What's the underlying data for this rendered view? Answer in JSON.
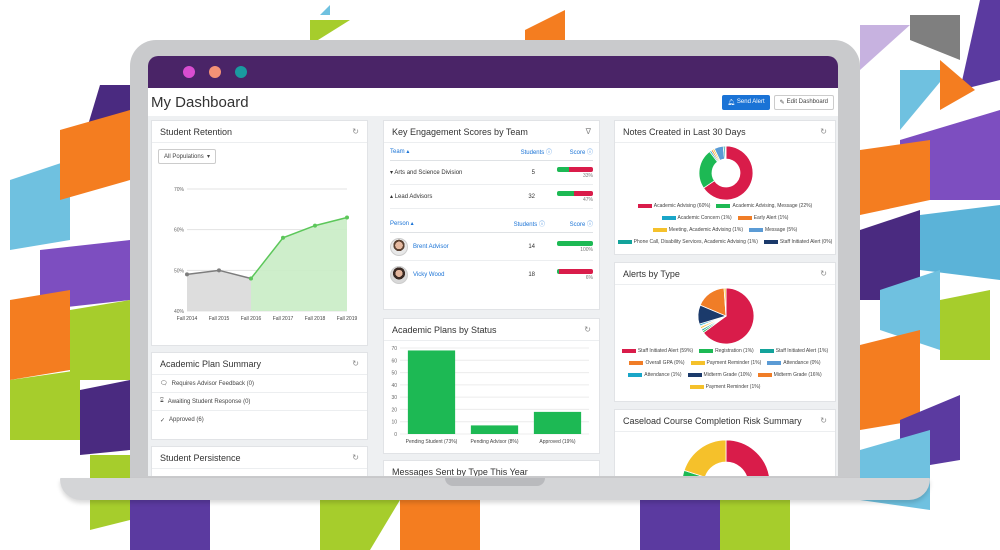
{
  "window": {
    "title_dot_colors": [
      "#d94dd0",
      "#f49276",
      "#1a9aa0"
    ]
  },
  "header": {
    "page_title": "My Dashboard",
    "send_alert_label": "Send Alert",
    "edit_dashboard_label": "Edit Dashboard",
    "send_icon": "bell-icon",
    "edit_icon": "pencil-icon"
  },
  "student_retention": {
    "title": "Student Retention",
    "population_select": "All Populations",
    "chart_data": {
      "type": "line",
      "x": [
        "Fall 2014",
        "Fall 2015",
        "Fall 2016",
        "Fall 2017",
        "Fall 2018",
        "Fall 2019"
      ],
      "series": [
        {
          "values": [
            49,
            50,
            48,
            null,
            null,
            null
          ],
          "color": "#7d7d7d"
        },
        {
          "values": [
            null,
            null,
            48,
            58,
            61,
            63
          ],
          "color": "#5cc75a"
        }
      ],
      "yticks": [
        "70%",
        "60%",
        "50%",
        "40%"
      ],
      "ylim": [
        40,
        70
      ]
    }
  },
  "academic_plan_summary": {
    "title": "Academic Plan Summary",
    "items": [
      {
        "label": "Requires Advisor Feedback (0)",
        "icon": "chat-icon"
      },
      {
        "label": "Awaiting Student Response (0)",
        "icon": "hourglass-icon"
      },
      {
        "label": "Approved (6)",
        "icon": "check-icon"
      }
    ]
  },
  "student_persistence": {
    "title": "Student Persistence"
  },
  "engagement": {
    "title": "Key Engagement Scores by Team",
    "team_headers": {
      "team": "Team",
      "students": "Students",
      "score": "Score"
    },
    "teams": [
      {
        "name": "Arts and Science Division",
        "students": "5",
        "score": 0.33,
        "pct": "33%",
        "expanded": false
      },
      {
        "name": "Lead Advisors",
        "students": "32",
        "score": 0.47,
        "pct": "47%",
        "expanded": true
      }
    ],
    "person_headers": {
      "person": "Person",
      "students": "Students",
      "score": "Score"
    },
    "people": [
      {
        "name": "Brent Advisor",
        "students": "14",
        "score": 1.0,
        "pct": "100%"
      },
      {
        "name": "Vicky Wood",
        "students": "18",
        "score": 0.06,
        "pct": "6%"
      }
    ]
  },
  "academic_plans": {
    "title": "Academic Plans by Status",
    "chart_data": {
      "type": "bar",
      "categories": [
        "Pending Student (73%)",
        "Pending Advisor (8%)",
        "Approved (19%)"
      ],
      "values": [
        68,
        7,
        18
      ],
      "yticks": [
        "70",
        "60",
        "50",
        "40",
        "30",
        "20",
        "10",
        "0"
      ],
      "ylim": [
        0,
        70
      ],
      "color": "#1db954"
    }
  },
  "messages_sent": {
    "title": "Messages Sent by Type This Year"
  },
  "notes": {
    "title": "Notes Created in Last 30 Days",
    "chart_data": {
      "type": "pie",
      "labels": [
        "Academic Advising (60%)",
        "Academic Advising, Message (22%)",
        "Academic Concern (1%)",
        "Early Alert (1%)",
        "Meeting, Academic Advising (1%)",
        "Message (5%)",
        "Phone Call, Disability Services, Academic Advising (1%)",
        "Staff Initiated Alert (0%)"
      ],
      "values": [
        60,
        22,
        1,
        1,
        1,
        5,
        1,
        0.5
      ],
      "colors": [
        "#d91c4a",
        "#1db954",
        "#1aa6c8",
        "#f07d27",
        "#f5c12b",
        "#5b9bd5",
        "#13a39b",
        "#1b3a6b"
      ]
    }
  },
  "alerts": {
    "title": "Alerts by Type",
    "chart_data": {
      "type": "pie",
      "labels": [
        "Staff Initiated Alert (59%)",
        "Registration (1%)",
        "Staff Initiated Alert (1%)",
        "Overall GPA (0%)",
        "Payment Reminder (1%)",
        "Attendance (0%)",
        "Attendance (1%)",
        "Midterm Grade (10%)",
        "Midterm Grade (16%)",
        "Payment Reminder (1%)"
      ],
      "values": [
        59,
        1,
        1,
        0.5,
        1,
        0.5,
        1,
        10,
        16,
        1
      ],
      "colors": [
        "#d91c4a",
        "#1db954",
        "#13a39b",
        "#f07d27",
        "#f5c12b",
        "#5b9bd5",
        "#1aa6c8",
        "#1b3a6b",
        "#f07d27",
        "#f5c12b"
      ]
    }
  },
  "caseload": {
    "title": "Caseload Course Completion Risk Summary",
    "chart_data": {
      "type": "pie",
      "values": [
        45,
        35,
        20
      ],
      "colors": [
        "#d91c4a",
        "#1db954",
        "#f5c12b"
      ]
    }
  }
}
